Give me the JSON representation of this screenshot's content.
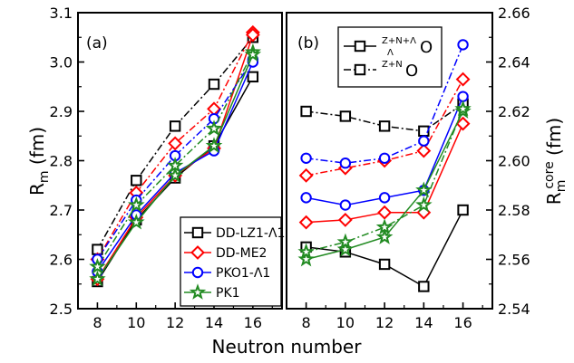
{
  "chart_data": [
    {
      "type": "line",
      "panel_label": "(a)",
      "x": [
        8,
        10,
        12,
        14,
        16
      ],
      "xlabel": "Neutron number",
      "ylabel": "R",
      "ylabel_sub": "m",
      "ylabel_unit": "(fm)",
      "xlim": [
        7,
        17.5
      ],
      "ylim": [
        2.5,
        3.1
      ],
      "yticks": [
        "2.5",
        "2.6",
        "2.7",
        "2.8",
        "2.9",
        "3.0",
        "3.1"
      ],
      "xticks": [
        "8",
        "10",
        "12",
        "14",
        "16"
      ],
      "legend_position": "bottom-right",
      "series": [
        {
          "name": "DD-LZ1-Λ1",
          "color": "#000000",
          "marker": "square",
          "with_hyperon": [
            2.62,
            2.76,
            2.87,
            2.955,
            3.05
          ],
          "core": [
            2.555,
            2.68,
            2.765,
            2.83,
            2.97
          ]
        },
        {
          "name": "DD-ME2",
          "color": "#ff0000",
          "marker": "diamond",
          "with_hyperon": [
            2.6,
            2.735,
            2.835,
            2.905,
            3.06
          ],
          "core": [
            2.56,
            2.685,
            2.77,
            2.825,
            3.055
          ]
        },
        {
          "name": "PKO1-Λ1",
          "color": "#0000ff",
          "marker": "circle",
          "with_hyperon": [
            2.6,
            2.72,
            2.81,
            2.885,
            3.005
          ],
          "core": [
            2.575,
            2.69,
            2.775,
            2.82,
            3.0
          ]
        },
        {
          "name": "PK1",
          "color": "#228b22",
          "marker": "star",
          "with_hyperon": [
            2.585,
            2.71,
            2.79,
            2.865,
            3.02
          ],
          "core": [
            2.56,
            2.675,
            2.77,
            2.83,
            3.015
          ]
        }
      ]
    },
    {
      "type": "line",
      "panel_label": "(b)",
      "x": [
        8,
        10,
        12,
        14,
        16
      ],
      "xlabel": "Neutron number",
      "ylabel": "R",
      "ylabel_sub": "m",
      "ylabel_sup": "core",
      "ylabel_unit": "(fm)",
      "xlim": [
        7,
        17.5
      ],
      "ylim": [
        2.54,
        2.66
      ],
      "yticks": [
        "2.54",
        "2.56",
        "2.58",
        "2.60",
        "2.62",
        "2.64",
        "2.66"
      ],
      "xticks": [
        "8",
        "10",
        "12",
        "14",
        "16"
      ],
      "legend_position": "top-left",
      "legend": [
        {
          "sup": "Z+N+Λ",
          "sub": "Λ",
          "label": "O",
          "style": "solid"
        },
        {
          "sup": "Z+N",
          "sub": "",
          "label": "O",
          "style": "dashdot"
        }
      ],
      "series": [
        {
          "name": "DD-LZ1-Λ1",
          "color": "#000000",
          "marker": "square",
          "with_hyperon": [
            2.565,
            2.563,
            2.558,
            2.549,
            2.58
          ],
          "core": [
            2.62,
            2.618,
            2.614,
            2.612,
            2.623
          ]
        },
        {
          "name": "DD-ME2",
          "color": "#ff0000",
          "marker": "diamond",
          "with_hyperon": [
            2.575,
            2.576,
            2.579,
            2.579,
            2.615
          ],
          "core": [
            2.594,
            2.597,
            2.6,
            2.604,
            2.633
          ]
        },
        {
          "name": "PKO1-Λ1",
          "color": "#0000ff",
          "marker": "circle",
          "with_hyperon": [
            2.585,
            2.582,
            2.585,
            2.588,
            2.626
          ],
          "core": [
            2.601,
            2.599,
            2.601,
            2.608,
            2.647
          ]
        },
        {
          "name": "PK1",
          "color": "#228b22",
          "marker": "star",
          "with_hyperon": [
            2.56,
            2.564,
            2.569,
            2.588,
            2.62
          ],
          "core": [
            2.563,
            2.567,
            2.573,
            2.582,
            2.621
          ]
        }
      ]
    }
  ]
}
